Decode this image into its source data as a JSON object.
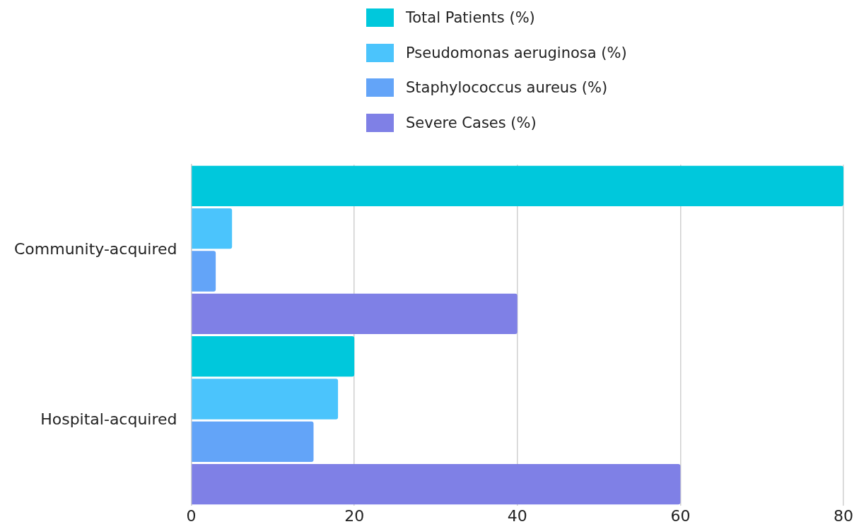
{
  "chart_data": {
    "type": "bar",
    "orientation": "horizontal",
    "categories": [
      "Community-acquired",
      "Hospital-acquired"
    ],
    "series": [
      {
        "name": "Total Patients (%)",
        "color": "#00c8dc",
        "values": [
          80,
          20
        ]
      },
      {
        "name": "Pseudomonas aeruginosa (%)",
        "color": "#4bc4fc",
        "values": [
          5,
          18
        ]
      },
      {
        "name": "Staphylococcus aureus (%)",
        "color": "#63a4f8",
        "values": [
          3,
          15
        ]
      },
      {
        "name": "Severe Cases (%)",
        "color": "#7f80e6",
        "values": [
          40,
          60
        ]
      }
    ],
    "xlim": [
      0,
      80
    ],
    "xticks": [
      0,
      20,
      40,
      60,
      80
    ],
    "grid": "x",
    "legend": "top"
  }
}
